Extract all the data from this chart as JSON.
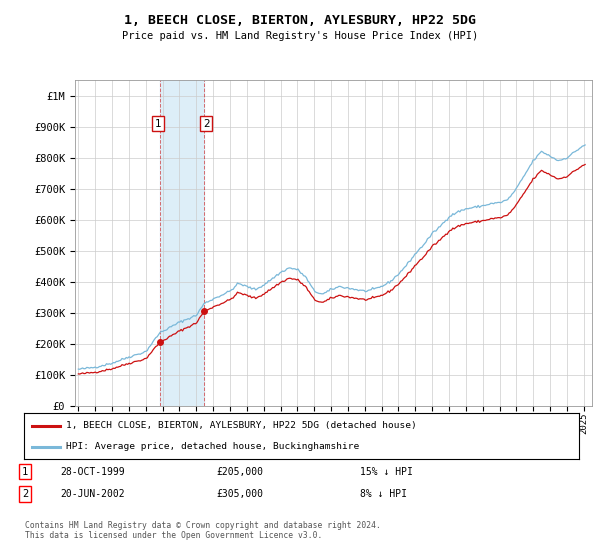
{
  "title": "1, BEECH CLOSE, BIERTON, AYLESBURY, HP22 5DG",
  "subtitle": "Price paid vs. HM Land Registry's House Price Index (HPI)",
  "ylim": [
    0,
    1050000
  ],
  "yticks": [
    0,
    100000,
    200000,
    300000,
    400000,
    500000,
    600000,
    700000,
    800000,
    900000,
    1000000
  ],
  "ytick_labels": [
    "£0",
    "£100K",
    "£200K",
    "£300K",
    "£400K",
    "£500K",
    "£600K",
    "£700K",
    "£800K",
    "£900K",
    "£1M"
  ],
  "hpi_color": "#7ab8d9",
  "price_color": "#cc1111",
  "shade_color": "#ddeef8",
  "t1_year": 1999.83,
  "t2_year": 2002.46,
  "t1_price": 205000,
  "t2_price": 305000,
  "transaction1_date": "28-OCT-1999",
  "transaction1_price": 205000,
  "transaction1_pct": "15% ↓ HPI",
  "transaction2_date": "20-JUN-2002",
  "transaction2_price": 305000,
  "transaction2_pct": "8% ↓ HPI",
  "legend_label_red": "1, BEECH CLOSE, BIERTON, AYLESBURY, HP22 5DG (detached house)",
  "legend_label_blue": "HPI: Average price, detached house, Buckinghamshire",
  "footer": "Contains HM Land Registry data © Crown copyright and database right 2024.\nThis data is licensed under the Open Government Licence v3.0.",
  "background_color": "#ffffff",
  "grid_color": "#cccccc",
  "xmin": 1994.8,
  "xmax": 2025.5
}
